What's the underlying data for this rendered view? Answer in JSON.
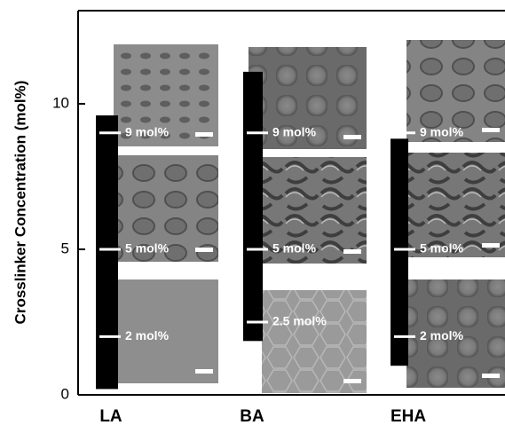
{
  "chart_data": {
    "type": "floating-bar",
    "ylabel": "Crosslinker Concentration (mol%)",
    "categories": [
      "LA",
      "BA",
      "EHA"
    ],
    "values": [
      [
        0.2,
        9.6
      ],
      [
        1.85,
        11.1
      ],
      [
        1.0,
        8.8
      ]
    ],
    "color": "#000000",
    "ylim": [
      0,
      13.2
    ],
    "yticks": [
      0,
      5,
      10
    ],
    "annotations": [
      {
        "category": 0,
        "text": "9 mol%",
        "value": 9
      },
      {
        "category": 0,
        "text": "5 mol%",
        "value": 5
      },
      {
        "category": 0,
        "text": "2 mol%",
        "value": 2
      },
      {
        "category": 1,
        "text": "9 mol%",
        "value": 9
      },
      {
        "category": 1,
        "text": "5 mol%",
        "value": 5
      },
      {
        "category": 1,
        "text": "2.5 mol%",
        "value": 2.5
      },
      {
        "category": 2,
        "text": "9 mol%",
        "value": 9
      },
      {
        "category": 2,
        "text": "5 mol%",
        "value": 5
      },
      {
        "category": 2,
        "text": "2 mol%",
        "value": 2
      }
    ]
  }
}
